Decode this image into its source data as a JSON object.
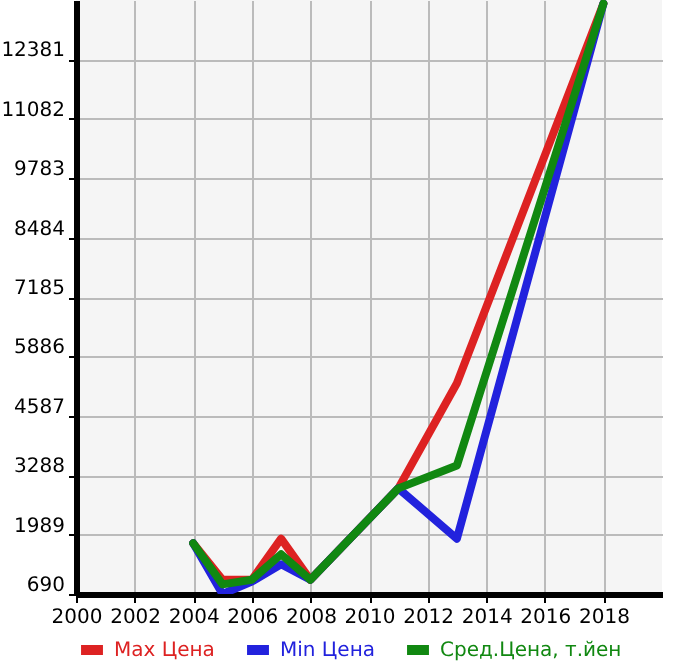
{
  "chart_data": {
    "type": "line",
    "x": [
      2004,
      2005,
      2006,
      2007,
      2008,
      2011,
      2013,
      2018
    ],
    "series": [
      {
        "name": "Max Цена",
        "color": "#dd2222",
        "values": [
          1800,
          1000,
          1000,
          1900,
          1000,
          3000,
          5300,
          13600
        ]
      },
      {
        "name": "Min Цена",
        "color": "#2222dd",
        "values": [
          1800,
          690,
          960,
          1340,
          1000,
          3000,
          1900,
          13600
        ]
      },
      {
        "name": "Сред.Цена, т.йен",
        "color": "#118811",
        "values": [
          1800,
          900,
          1000,
          1560,
          1000,
          3000,
          3500,
          13600
        ]
      }
    ],
    "xlim": [
      2000,
      2020
    ],
    "xticks": [
      2000,
      2002,
      2004,
      2006,
      2008,
      2010,
      2012,
      2014,
      2016,
      2018
    ],
    "ylim": [
      690,
      13680
    ],
    "yticks": [
      690,
      1989,
      3288,
      4587,
      5886,
      7185,
      8484,
      9783,
      11082,
      12381
    ],
    "grid": true,
    "legend": "bottom",
    "line_style": "solid",
    "marker": "none"
  }
}
